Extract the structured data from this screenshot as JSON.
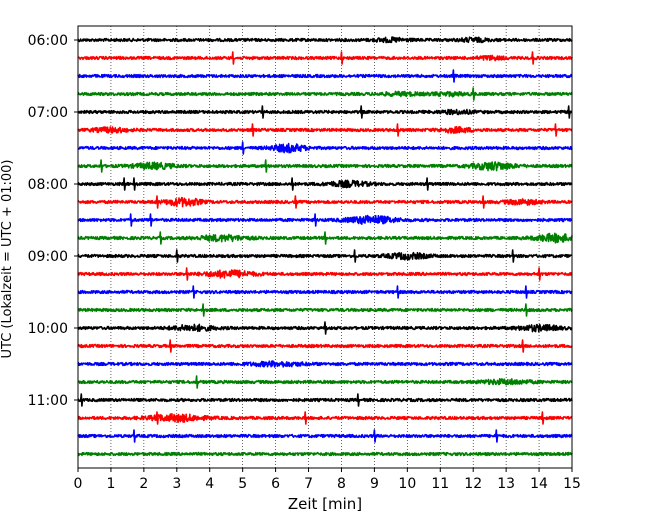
{
  "chart_data": {
    "type": "line",
    "xlabel": "Zeit  [min]",
    "ylabel": "UTC (Lokalzeit = UTC + 01:00)",
    "xlim": [
      0,
      15
    ],
    "x_ticks": [
      "0",
      "1",
      "2",
      "3",
      "4",
      "5",
      "6",
      "7",
      "8",
      "9",
      "10",
      "11",
      "12",
      "13",
      "14",
      "15"
    ],
    "grid": "vertical dotted lines at each minute",
    "trace_interval_minutes": 15,
    "trace_colors": [
      "#000000",
      "#ff0000",
      "#0000ff",
      "#008000"
    ],
    "y_ticks": [
      "06:00",
      "07:00",
      "08:00",
      "09:00",
      "10:00",
      "11:00"
    ],
    "traces": [
      {
        "start": "06:00",
        "color": "#000000",
        "events": [
          [
            9.5,
            0.5,
            1.5
          ],
          [
            12.0,
            0.4,
            1.6
          ]
        ],
        "spikes": []
      },
      {
        "start": "06:15",
        "color": "#ff0000",
        "events": [
          [
            12.5,
            0.4,
            1.5
          ]
        ],
        "spikes": [
          4.7,
          8.0,
          13.8
        ]
      },
      {
        "start": "06:30",
        "color": "#0000ff",
        "events": [],
        "spikes": [
          11.4
        ]
      },
      {
        "start": "06:45",
        "color": "#008000",
        "events": [
          [
            9.8,
            0.6,
            1.3
          ],
          [
            11.3,
            0.5,
            1.3
          ]
        ],
        "spikes": [
          12.0
        ]
      },
      {
        "start": "07:00",
        "color": "#000000",
        "events": [
          [
            11.5,
            0.5,
            1.5
          ]
        ],
        "spikes": [
          5.6,
          8.6,
          14.9
        ]
      },
      {
        "start": "07:15",
        "color": "#ff0000",
        "events": [
          [
            1.0,
            0.5,
            2.0
          ],
          [
            11.5,
            0.5,
            2.0
          ]
        ],
        "spikes": [
          5.3,
          9.7,
          14.5
        ]
      },
      {
        "start": "07:30",
        "color": "#0000ff",
        "events": [
          [
            6.4,
            0.5,
            3.5
          ]
        ],
        "spikes": [
          5.0
        ]
      },
      {
        "start": "07:45",
        "color": "#008000",
        "events": [
          [
            2.3,
            0.6,
            2.5
          ],
          [
            12.6,
            0.6,
            3.5
          ]
        ],
        "spikes": [
          0.7,
          5.7
        ]
      },
      {
        "start": "08:00",
        "color": "#000000",
        "events": [
          [
            8.2,
            0.6,
            2.4
          ]
        ],
        "spikes": [
          1.4,
          1.7,
          6.5,
          10.6
        ]
      },
      {
        "start": "08:15",
        "color": "#ff0000",
        "events": [
          [
            3.2,
            0.5,
            3.5
          ],
          [
            13.5,
            0.5,
            2.0
          ]
        ],
        "spikes": [
          2.4,
          6.6,
          12.3
        ]
      },
      {
        "start": "08:30",
        "color": "#0000ff",
        "events": [
          [
            8.9,
            0.7,
            3.5
          ]
        ],
        "spikes": [
          1.6,
          2.2,
          7.2
        ]
      },
      {
        "start": "08:45",
        "color": "#008000",
        "events": [
          [
            4.4,
            0.7,
            2.5
          ],
          [
            14.5,
            0.6,
            3.5
          ]
        ],
        "spikes": [
          2.5,
          7.5
        ]
      },
      {
        "start": "09:00",
        "color": "#000000",
        "events": [
          [
            10.0,
            0.6,
            2.5
          ]
        ],
        "spikes": [
          3.0,
          8.4,
          13.2
        ]
      },
      {
        "start": "09:15",
        "color": "#ff0000",
        "events": [
          [
            4.6,
            0.7,
            3.0
          ]
        ],
        "spikes": [
          3.3,
          14.0
        ]
      },
      {
        "start": "09:30",
        "color": "#0000ff",
        "events": [],
        "spikes": [
          3.5,
          9.7,
          13.6
        ]
      },
      {
        "start": "09:45",
        "color": "#008000",
        "events": [],
        "spikes": [
          3.8,
          13.6
        ]
      },
      {
        "start": "10:00",
        "color": "#000000",
        "events": [
          [
            3.5,
            0.6,
            2.5
          ],
          [
            14.0,
            0.6,
            2.5
          ]
        ],
        "spikes": [
          7.5
        ]
      },
      {
        "start": "10:15",
        "color": "#ff0000",
        "events": [],
        "spikes": [
          2.8,
          13.5
        ]
      },
      {
        "start": "10:30",
        "color": "#0000ff",
        "events": [
          [
            6.0,
            0.8,
            1.8
          ]
        ],
        "spikes": []
      },
      {
        "start": "10:45",
        "color": "#008000",
        "events": [
          [
            13.0,
            0.7,
            2.0
          ]
        ],
        "spikes": [
          3.6
        ]
      },
      {
        "start": "11:00",
        "color": "#000000",
        "events": [],
        "spikes": [
          0.1,
          8.5
        ]
      },
      {
        "start": "11:15",
        "color": "#ff0000",
        "events": [
          [
            3.0,
            0.8,
            3.0
          ]
        ],
        "spikes": [
          2.4,
          6.9,
          14.1
        ]
      },
      {
        "start": "11:30",
        "color": "#0000ff",
        "events": [],
        "spikes": [
          1.7,
          9.0,
          12.7
        ]
      },
      {
        "start": "11:45",
        "color": "#008000",
        "events": [],
        "spikes": []
      }
    ]
  }
}
